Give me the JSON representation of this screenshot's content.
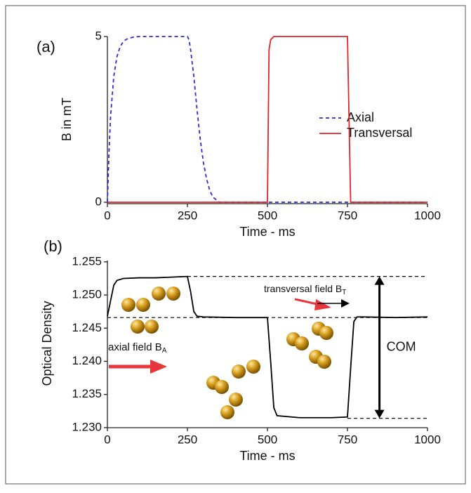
{
  "chart_data": [
    {
      "type": "line",
      "label": "(a)",
      "xlabel": "Time - ms",
      "ylabel": "B in mT",
      "x": [
        0,
        5,
        10,
        20,
        30,
        40,
        50,
        60,
        80,
        100,
        150,
        200,
        250,
        255,
        260,
        270,
        280,
        290,
        300,
        310,
        320,
        330,
        350,
        400,
        500,
        505,
        510,
        520,
        740,
        750,
        755,
        760,
        1000
      ],
      "series": [
        {
          "name": "Axial",
          "color": "#2b2bd8",
          "dashed": true,
          "values": [
            0,
            1.5,
            2.6,
            3.8,
            4.4,
            4.7,
            4.85,
            4.92,
            4.98,
            5,
            5,
            5,
            5,
            4.9,
            4.6,
            3.8,
            2.8,
            1.9,
            1.2,
            0.7,
            0.35,
            0.15,
            0,
            0,
            0,
            0,
            0,
            0,
            0,
            0,
            0,
            0,
            0
          ]
        },
        {
          "name": "Transversal",
          "color": "#e0262a",
          "dashed": false,
          "values": [
            0,
            0,
            0,
            0,
            0,
            0,
            0,
            0,
            0,
            0,
            0,
            0,
            0,
            0,
            0,
            0,
            0,
            0,
            0,
            0,
            0,
            0,
            0,
            0,
            0,
            4.6,
            4.9,
            5,
            5,
            5,
            2.5,
            0,
            0
          ]
        }
      ],
      "xlim": [
        0,
        1000
      ],
      "xticks": [
        0,
        250,
        500,
        750,
        1000
      ],
      "ylim": [
        0,
        5
      ],
      "yticks": [
        0,
        5
      ],
      "grid": false,
      "legend": "right"
    },
    {
      "type": "line",
      "label": "(b)",
      "xlabel": "Time - ms",
      "ylabel": "Optical Density",
      "x": [
        0,
        20,
        30,
        50,
        100,
        150,
        200,
        250,
        260,
        270,
        280,
        300,
        400,
        500,
        510,
        520,
        530,
        600,
        700,
        750,
        760,
        770,
        780,
        800,
        900,
        1000
      ],
      "series": [
        {
          "color": "#000000",
          "dashed": false,
          "values": [
            1.2468,
            1.2515,
            1.2522,
            1.2525,
            1.2526,
            1.2526,
            1.2527,
            1.2528,
            1.2505,
            1.2475,
            1.2468,
            1.2467,
            1.2466,
            1.2466,
            1.24,
            1.233,
            1.2318,
            1.2315,
            1.2315,
            1.2316,
            1.239,
            1.246,
            1.2467,
            1.2467,
            1.2466,
            1.2467
          ]
        }
      ],
      "xlim": [
        0,
        1000
      ],
      "xticks": [
        0,
        250,
        500,
        750,
        1000
      ],
      "ylim": [
        1.2302,
        1.2552
      ],
      "yticks": [
        1.255,
        {
          "value": 1.25,
          "label": "1.250"
        },
        1.245,
        {
          "value": 1.24,
          "label": "1.240"
        },
        1.235,
        {
          "value": 1.23,
          "label": "1.230"
        }
      ],
      "grid": false,
      "reference_lines": [
        {
          "value": 1.2528,
          "xlim": [
            250,
            1000
          ]
        },
        {
          "value": 1.2466,
          "xlim": [
            0,
            1000
          ]
        },
        {
          "value": 1.2314,
          "xlim": [
            750,
            1000
          ]
        }
      ],
      "arrow": {
        "x": 850,
        "y": [
          1.2314,
          1.2528
        ],
        "label": "COM"
      },
      "annotations": [
        {
          "text": "transversal field B",
          "sub": "T"
        },
        {
          "text": "axial field B",
          "sub": "A"
        }
      ]
    }
  ]
}
